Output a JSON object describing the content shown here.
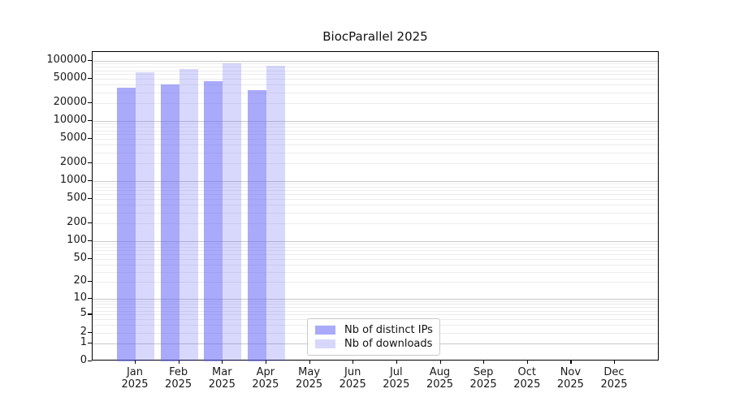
{
  "title": "BiocParallel 2025",
  "legend": {
    "items": [
      {
        "label": "Nb of distinct IPs"
      },
      {
        "label": "Nb of downloads"
      }
    ]
  },
  "colors": {
    "bar_distinct_ips": "rgba(100,100,245,0.55)",
    "bar_downloads": "rgba(100,100,245,0.25)",
    "grid_major": "#c9c9c9",
    "grid_minor": "#ececec",
    "axis": "#000000",
    "text": "#1a1a1a"
  },
  "chart_data": {
    "type": "bar",
    "title": "BiocParallel 2025",
    "categories": [
      "Jan 2025",
      "Feb 2025",
      "Mar 2025",
      "Apr 2025",
      "May 2025",
      "Jun 2025",
      "Jul 2025",
      "Aug 2025",
      "Sep 2025",
      "Oct 2025",
      "Nov 2025",
      "Dec 2025"
    ],
    "series": [
      {
        "name": "Nb of distinct IPs",
        "color": "rgba(100,100,245,0.55)",
        "values": [
          36000,
          41000,
          46000,
          32500,
          null,
          null,
          null,
          null,
          null,
          null,
          null,
          null
        ]
      },
      {
        "name": "Nb of downloads",
        "color": "rgba(100,100,245,0.25)",
        "values": [
          65000,
          74000,
          90000,
          83000,
          null,
          null,
          null,
          null,
          null,
          null,
          null,
          null
        ]
      }
    ],
    "y_scale": "log10(value+1)",
    "y_ticks": [
      0,
      1,
      2,
      5,
      10,
      20,
      50,
      100,
      200,
      500,
      1000,
      2000,
      5000,
      10000,
      20000,
      50000,
      100000
    ],
    "ylim": [
      0,
      140000
    ],
    "grid": true,
    "legend_position": "lower center"
  }
}
